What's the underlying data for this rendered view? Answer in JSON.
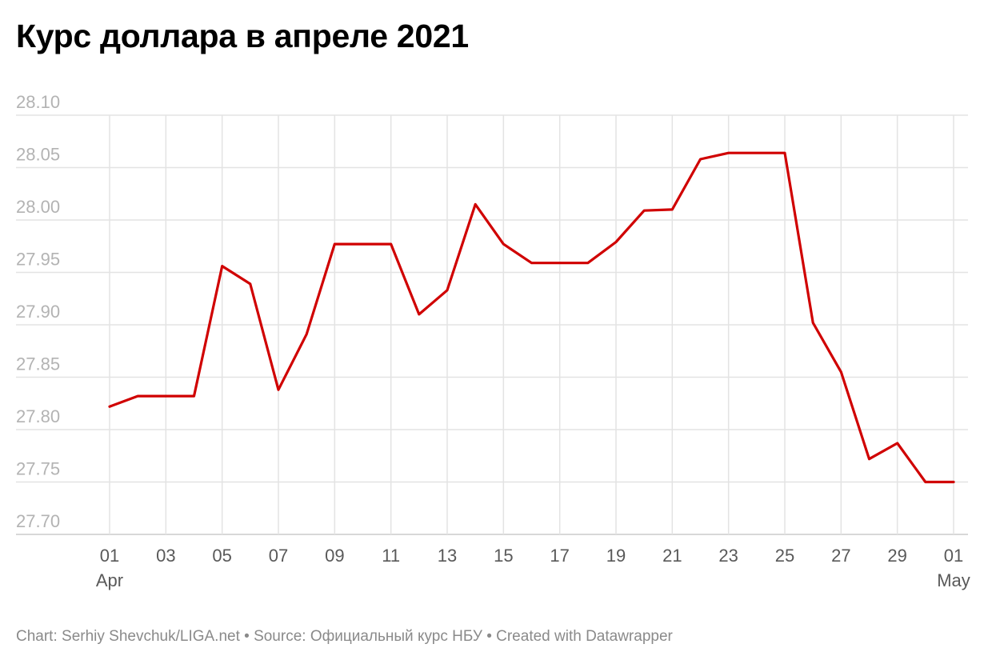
{
  "chart_data": {
    "type": "line",
    "title": "Курс доллара в апреле 2021",
    "xlabel": "",
    "ylabel": "",
    "ylim": [
      27.7,
      28.1
    ],
    "yticks": [
      "28.10",
      "28.05",
      "28.00",
      "27.95",
      "27.90",
      "27.85",
      "27.80",
      "27.75",
      "27.70"
    ],
    "ytick_values": [
      28.1,
      28.05,
      28.0,
      27.95,
      27.9,
      27.85,
      27.8,
      27.75,
      27.7
    ],
    "xticks": [
      {
        "day": 1,
        "label": "01",
        "sub": "Apr"
      },
      {
        "day": 3,
        "label": "03",
        "sub": ""
      },
      {
        "day": 5,
        "label": "05",
        "sub": ""
      },
      {
        "day": 7,
        "label": "07",
        "sub": ""
      },
      {
        "day": 9,
        "label": "09",
        "sub": ""
      },
      {
        "day": 11,
        "label": "11",
        "sub": ""
      },
      {
        "day": 13,
        "label": "13",
        "sub": ""
      },
      {
        "day": 15,
        "label": "15",
        "sub": ""
      },
      {
        "day": 17,
        "label": "17",
        "sub": ""
      },
      {
        "day": 19,
        "label": "19",
        "sub": ""
      },
      {
        "day": 21,
        "label": "21",
        "sub": ""
      },
      {
        "day": 23,
        "label": "23",
        "sub": ""
      },
      {
        "day": 25,
        "label": "25",
        "sub": ""
      },
      {
        "day": 27,
        "label": "27",
        "sub": ""
      },
      {
        "day": 29,
        "label": "29",
        "sub": ""
      },
      {
        "day": 31,
        "label": "01",
        "sub": "May"
      }
    ],
    "x_domain": [
      1,
      32
    ],
    "grid": true,
    "series": [
      {
        "color": "#d00000",
        "x": [
          1,
          2,
          3,
          4,
          5,
          6,
          7,
          8,
          9,
          10,
          11,
          12,
          13,
          14,
          15,
          16,
          17,
          18,
          19,
          20,
          21,
          22,
          23,
          24,
          25,
          26,
          27,
          28,
          29,
          30,
          31
        ],
        "values": [
          27.822,
          27.832,
          27.832,
          27.832,
          27.956,
          27.939,
          27.838,
          27.891,
          27.977,
          27.977,
          27.977,
          27.91,
          27.933,
          28.015,
          27.977,
          27.959,
          27.959,
          27.959,
          27.979,
          28.009,
          28.01,
          28.058,
          28.064,
          28.064,
          28.064,
          27.902,
          27.855,
          27.772,
          27.787,
          27.75,
          27.75
        ]
      }
    ]
  },
  "footer": {
    "text": "Chart: Serhiy Shevchuk/LIGA.net • Source: Официальный курс НБУ • Created with Datawrapper"
  }
}
